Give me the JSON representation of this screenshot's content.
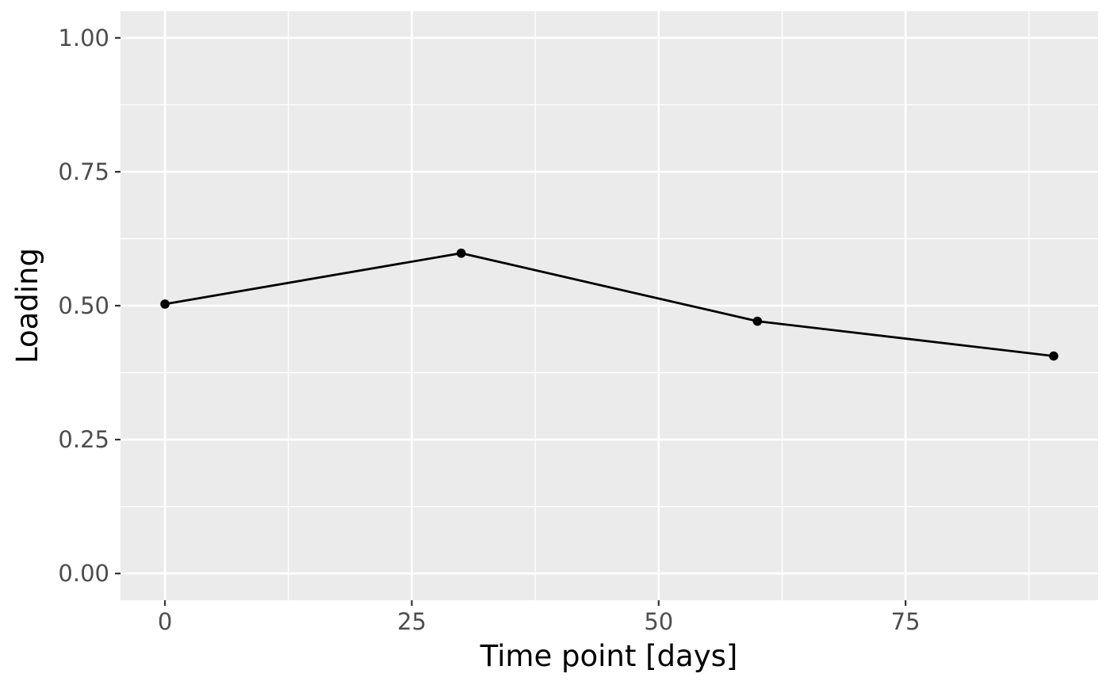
{
  "chart_data": {
    "type": "line",
    "title": "",
    "xlabel": "Time point [days]",
    "ylabel": "Loading",
    "x": [
      0,
      30,
      60,
      90
    ],
    "series": [
      {
        "values": [
          0.503,
          0.598,
          0.471,
          0.406
        ]
      }
    ],
    "xlim": [
      -4.5,
      94.5
    ],
    "ylim": [
      -0.05,
      1.05
    ],
    "x_ticks": [
      0,
      25,
      50,
      75
    ],
    "x_tick_labels": [
      "0",
      "25",
      "50",
      "75"
    ],
    "y_ticks": [
      0,
      0.25,
      0.5,
      0.75,
      1.0
    ],
    "y_tick_labels": [
      "0.00",
      "0.25",
      "0.50",
      "0.75",
      "1.00"
    ],
    "grid": true,
    "legend": "none",
    "colors": {
      "panel_background": "#ebebeb",
      "grid_line": "#ffffff",
      "series_line": "#000000",
      "point": "#000000",
      "tick_text": "#4d4d4d",
      "tick_mark": "#333333"
    }
  }
}
